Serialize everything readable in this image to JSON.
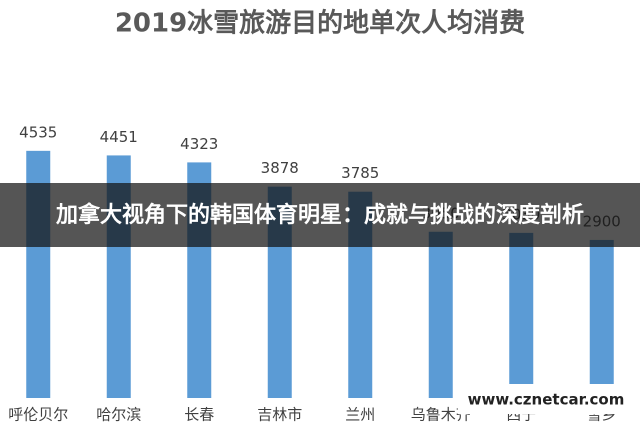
{
  "chart_data": {
    "type": "bar",
    "title": "2019冰雪旅游目的地单次人均消费",
    "categories": [
      "呼伦贝尔",
      "哈尔滨",
      "长春",
      "吉林市",
      "兰州",
      "乌鲁木齐",
      "西宁",
      "雪乡"
    ],
    "values": [
      4535,
      4451,
      4323,
      3878,
      3785,
      3050,
      3030,
      2900
    ],
    "color": "#5b9bd5"
  },
  "overlay": {
    "banner": "加拿大视角下的韩国体育明星：成就与挑战的深度剖析",
    "watermark": "www.cznetcar.com"
  }
}
